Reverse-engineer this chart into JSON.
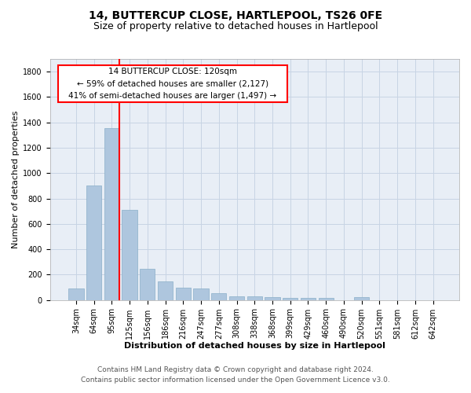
{
  "title": "14, BUTTERCUP CLOSE, HARTLEPOOL, TS26 0FE",
  "subtitle": "Size of property relative to detached houses in Hartlepool",
  "xlabel": "Distribution of detached houses by size in Hartlepool",
  "ylabel": "Number of detached properties",
  "footer_line1": "Contains HM Land Registry data © Crown copyright and database right 2024.",
  "footer_line2": "Contains public sector information licensed under the Open Government Licence v3.0.",
  "categories": [
    "34sqm",
    "64sqm",
    "95sqm",
    "125sqm",
    "156sqm",
    "186sqm",
    "216sqm",
    "247sqm",
    "277sqm",
    "308sqm",
    "338sqm",
    "368sqm",
    "399sqm",
    "429sqm",
    "460sqm",
    "490sqm",
    "520sqm",
    "551sqm",
    "581sqm",
    "612sqm",
    "642sqm"
  ],
  "values": [
    90,
    905,
    1355,
    710,
    245,
    145,
    95,
    90,
    55,
    30,
    30,
    20,
    15,
    15,
    15,
    0,
    20,
    0,
    0,
    0,
    0
  ],
  "bar_color": "#aec6de",
  "bar_edge_color": "#8aafc8",
  "grid_color": "#c8d4e4",
  "bg_color": "#e8eef6",
  "property_line_color": "red",
  "property_line_bar_index": 2,
  "bar_width": 0.85,
  "ylim": [
    0,
    1900
  ],
  "yticks": [
    0,
    200,
    400,
    600,
    800,
    1000,
    1200,
    1400,
    1600,
    1800
  ],
  "ann_line1": "14 BUTTERCUP CLOSE: 120sqm",
  "ann_line2": "← 59% of detached houses are smaller (2,127)",
  "ann_line3": "41% of semi-detached houses are larger (1,497) →",
  "title_fontsize": 10,
  "subtitle_fontsize": 9,
  "ylabel_fontsize": 8,
  "xlabel_fontsize": 8,
  "tick_fontsize": 7,
  "ann_fontsize": 7.5,
  "footer_fontsize": 6.5
}
